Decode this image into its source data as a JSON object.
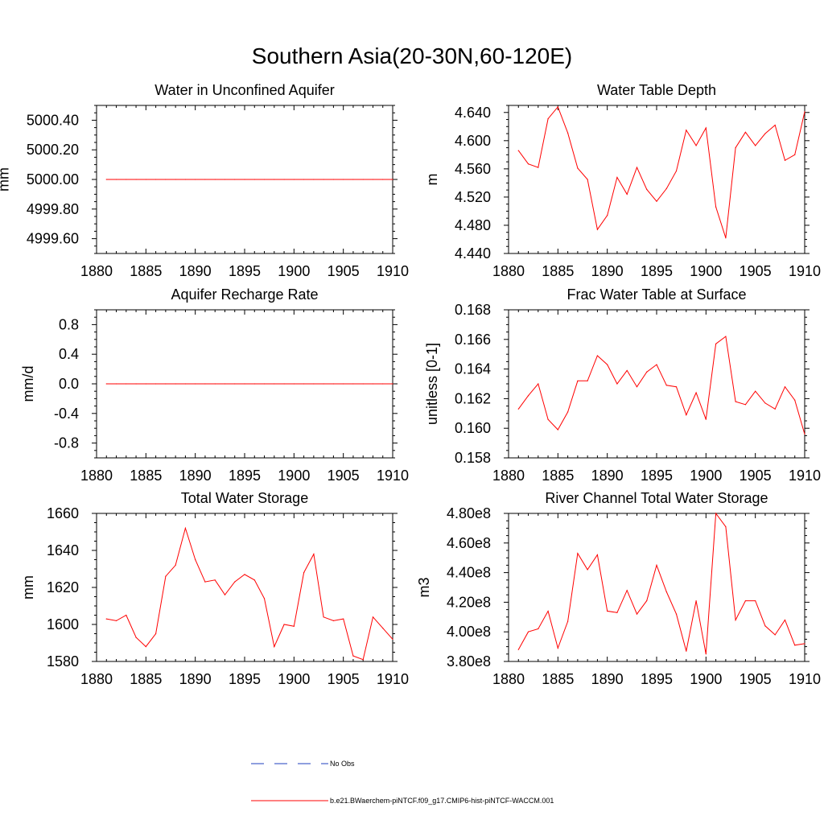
{
  "figure": {
    "title": "Southern Asia(20-30N,60-120E)",
    "legend": [
      {
        "label": "No Obs",
        "color": "#1f3fbf",
        "style": "dashed"
      },
      {
        "label": "b.e21.BWaerchem-piNTCF.f09_g17.CMIP6-hist-piNTCF-WACCM.001",
        "color": "#ff0000",
        "style": "solid"
      }
    ]
  },
  "chart_data": [
    {
      "type": "line",
      "title": "Water in Unconfined Aquifer",
      "xlabel": "",
      "ylabel": "mm",
      "xlim": [
        1880,
        1910
      ],
      "ylim": [
        4999.5,
        5000.5
      ],
      "xticks": [
        1880,
        1885,
        1890,
        1895,
        1900,
        1905,
        1910
      ],
      "yticks": [
        4999.6,
        4999.8,
        5000.0,
        5000.2,
        5000.4
      ],
      "ytick_labels": [
        "4999.60",
        "4999.80",
        "5000.00",
        "5000.20",
        "5000.40"
      ],
      "x": [
        1881,
        1882,
        1883,
        1884,
        1885,
        1886,
        1887,
        1888,
        1889,
        1890,
        1891,
        1892,
        1893,
        1894,
        1895,
        1896,
        1897,
        1898,
        1899,
        1900,
        1901,
        1902,
        1903,
        1904,
        1905,
        1906,
        1907,
        1908,
        1909,
        1910
      ],
      "series": [
        {
          "color": "#ff0000",
          "values": [
            5000.0,
            5000.0,
            5000.0,
            5000.0,
            5000.0,
            5000.0,
            5000.0,
            5000.0,
            5000.0,
            5000.0,
            5000.0,
            5000.0,
            5000.0,
            5000.0,
            5000.0,
            5000.0,
            5000.0,
            5000.0,
            5000.0,
            5000.0,
            5000.0,
            5000.0,
            5000.0,
            5000.0,
            5000.0,
            5000.0,
            5000.0,
            5000.0,
            5000.0,
            5000.0
          ]
        }
      ]
    },
    {
      "type": "line",
      "title": "Water Table Depth",
      "xlabel": "",
      "ylabel": "m",
      "xlim": [
        1880,
        1910
      ],
      "ylim": [
        4.44,
        4.65
      ],
      "xticks": [
        1880,
        1885,
        1890,
        1895,
        1900,
        1905,
        1910
      ],
      "yticks": [
        4.44,
        4.48,
        4.52,
        4.56,
        4.6,
        4.64
      ],
      "ytick_labels": [
        "4.440",
        "4.480",
        "4.520",
        "4.560",
        "4.600",
        "4.640"
      ],
      "x": [
        1881,
        1882,
        1883,
        1884,
        1885,
        1886,
        1887,
        1888,
        1889,
        1890,
        1891,
        1892,
        1893,
        1894,
        1895,
        1896,
        1897,
        1898,
        1899,
        1900,
        1901,
        1902,
        1903,
        1904,
        1905,
        1906,
        1907,
        1908,
        1909,
        1910
      ],
      "series": [
        {
          "color": "#ff0000",
          "values": [
            4.586,
            4.567,
            4.562,
            4.631,
            4.648,
            4.611,
            4.561,
            4.545,
            4.474,
            4.494,
            4.548,
            4.524,
            4.562,
            4.531,
            4.514,
            4.532,
            4.557,
            4.615,
            4.593,
            4.618,
            4.506,
            4.462,
            4.59,
            4.612,
            4.593,
            4.61,
            4.622,
            4.572,
            4.58,
            4.641
          ]
        }
      ]
    },
    {
      "type": "line",
      "title": "Aquifer Recharge Rate",
      "xlabel": "",
      "ylabel": "mm/d",
      "xlim": [
        1880,
        1910
      ],
      "ylim": [
        -1.0,
        1.0
      ],
      "xticks": [
        1880,
        1885,
        1890,
        1895,
        1900,
        1905,
        1910
      ],
      "yticks": [
        -0.8,
        -0.4,
        0.0,
        0.4,
        0.8
      ],
      "ytick_labels": [
        "-0.8",
        "-0.4",
        "0.0",
        "0.4",
        "0.8"
      ],
      "x": [
        1881,
        1882,
        1883,
        1884,
        1885,
        1886,
        1887,
        1888,
        1889,
        1890,
        1891,
        1892,
        1893,
        1894,
        1895,
        1896,
        1897,
        1898,
        1899,
        1900,
        1901,
        1902,
        1903,
        1904,
        1905,
        1906,
        1907,
        1908,
        1909,
        1910
      ],
      "series": [
        {
          "color": "#ff0000",
          "values": [
            0.0,
            0.0,
            0.0,
            0.0,
            0.0,
            0.0,
            0.0,
            0.0,
            0.0,
            0.0,
            0.0,
            0.0,
            0.0,
            0.0,
            0.0,
            0.0,
            0.0,
            0.0,
            0.0,
            0.0,
            0.0,
            0.0,
            0.0,
            0.0,
            0.0,
            0.0,
            0.0,
            0.0,
            0.0,
            0.0
          ]
        }
      ]
    },
    {
      "type": "line",
      "title": "Frac Water Table at Surface",
      "xlabel": "",
      "ylabel": "unitless [0-1]",
      "xlim": [
        1880,
        1910
      ],
      "ylim": [
        0.158,
        0.168
      ],
      "xticks": [
        1880,
        1885,
        1890,
        1895,
        1900,
        1905,
        1910
      ],
      "yticks": [
        0.158,
        0.16,
        0.162,
        0.164,
        0.166,
        0.168
      ],
      "ytick_labels": [
        "0.158",
        "0.160",
        "0.162",
        "0.164",
        "0.166",
        "0.168"
      ],
      "x": [
        1881,
        1882,
        1883,
        1884,
        1885,
        1886,
        1887,
        1888,
        1889,
        1890,
        1891,
        1892,
        1893,
        1894,
        1895,
        1896,
        1897,
        1898,
        1899,
        1900,
        1901,
        1902,
        1903,
        1904,
        1905,
        1906,
        1907,
        1908,
        1909,
        1910
      ],
      "series": [
        {
          "color": "#ff0000",
          "values": [
            0.1613,
            0.1622,
            0.163,
            0.1606,
            0.1599,
            0.1611,
            0.1632,
            0.1632,
            0.1649,
            0.1643,
            0.163,
            0.1639,
            0.1628,
            0.1638,
            0.1643,
            0.1629,
            0.1628,
            0.1609,
            0.1624,
            0.1606,
            0.1657,
            0.1662,
            0.1618,
            0.1616,
            0.1625,
            0.1617,
            0.1613,
            0.1628,
            0.1619,
            0.1596
          ]
        }
      ]
    },
    {
      "type": "line",
      "title": "Total Water Storage",
      "xlabel": "",
      "ylabel": "mm",
      "xlim": [
        1880,
        1910
      ],
      "ylim": [
        1580,
        1660
      ],
      "xticks": [
        1880,
        1885,
        1890,
        1895,
        1900,
        1905,
        1910
      ],
      "yticks": [
        1580,
        1600,
        1620,
        1640,
        1660
      ],
      "ytick_labels": [
        "1580",
        "1600",
        "1620",
        "1640",
        "1660"
      ],
      "x": [
        1881,
        1882,
        1883,
        1884,
        1885,
        1886,
        1887,
        1888,
        1889,
        1890,
        1891,
        1892,
        1893,
        1894,
        1895,
        1896,
        1897,
        1898,
        1899,
        1900,
        1901,
        1902,
        1903,
        1904,
        1905,
        1906,
        1907,
        1908,
        1909,
        1910
      ],
      "series": [
        {
          "color": "#ff0000",
          "values": [
            1603,
            1602,
            1605,
            1593,
            1588,
            1595,
            1626,
            1632,
            1652,
            1635,
            1623,
            1624,
            1616,
            1623,
            1627,
            1624,
            1614,
            1588,
            1600,
            1599,
            1628,
            1638,
            1604,
            1602,
            1603,
            1583,
            1581,
            1604,
            1598,
            1592
          ]
        }
      ]
    },
    {
      "type": "line",
      "title": "River Channel Total Water Storage",
      "xlabel": "",
      "ylabel": "m3",
      "xlim": [
        1880,
        1910
      ],
      "ylim": [
        380000000,
        480000000
      ],
      "xticks": [
        1880,
        1885,
        1890,
        1895,
        1900,
        1905,
        1910
      ],
      "yticks": [
        380000000,
        400000000,
        420000000,
        440000000,
        460000000,
        480000000
      ],
      "ytick_labels": [
        "3.80e8",
        "4.00e8",
        "4.20e8",
        "4.40e8",
        "4.60e8",
        "4.80e8"
      ],
      "x": [
        1881,
        1882,
        1883,
        1884,
        1885,
        1886,
        1887,
        1888,
        1889,
        1890,
        1891,
        1892,
        1893,
        1894,
        1895,
        1896,
        1897,
        1898,
        1899,
        1900,
        1901,
        1902,
        1903,
        1904,
        1905,
        1906,
        1907,
        1908,
        1909,
        1910
      ],
      "series": [
        {
          "color": "#ff0000",
          "values": [
            388000000,
            400000000,
            402000000,
            414000000,
            389000000,
            407000000,
            453000000,
            442000000,
            452000000,
            414000000,
            413000000,
            428000000,
            412000000,
            421000000,
            445000000,
            427000000,
            412000000,
            387000000,
            421000000,
            385000000,
            480000000,
            471000000,
            408000000,
            421000000,
            421000000,
            404000000,
            398000000,
            408000000,
            391000000,
            392000000
          ]
        }
      ]
    }
  ]
}
